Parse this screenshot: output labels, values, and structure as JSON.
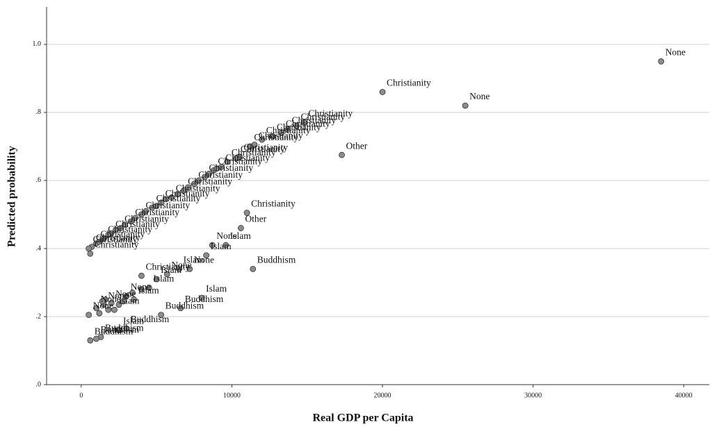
{
  "chart_data": {
    "type": "scatter",
    "x_label": "Real GDP per Capita",
    "y_label": "Predicted probability",
    "color": "#8c8c8c",
    "grid": true,
    "xlim": [
      -2300,
      41700
    ],
    "ylim": [
      0,
      1.11
    ],
    "xticks": [
      0,
      10000,
      20000,
      30000,
      40000
    ],
    "yticks": [
      {
        "value": 0,
        "label": ".0"
      },
      {
        "value": 0.2,
        "label": ".2"
      },
      {
        "value": 0.4,
        "label": ".4"
      },
      {
        "value": 0.6,
        "label": ".6"
      },
      {
        "value": 0.8,
        "label": ".8"
      },
      {
        "value": 1.0,
        "label": "1.0"
      }
    ],
    "x": [
      38500,
      20000,
      25500,
      17300,
      14800,
      14300,
      13700,
      13300,
      12700,
      12000,
      11500,
      11200,
      10500,
      10300,
      9700,
      9300,
      8800,
      8200,
      7500,
      6800,
      6000,
      5300,
      4700,
      4000,
      3300,
      2600,
      2000,
      1500,
      1000,
      700,
      500,
      600,
      11000,
      10600,
      11400,
      8700,
      9600,
      8300,
      7200,
      6500,
      5700,
      5000,
      4000,
      4500,
      8000,
      6600,
      5300,
      3500,
      3000,
      2000,
      1500,
      1000,
      500,
      3000,
      2500,
      1300,
      1000,
      600,
      2200,
      1200,
      1800,
      2300,
      2900,
      3600,
      4300,
      5000,
      5600,
      6400,
      7100,
      7800,
      8500,
      9000,
      1200,
      1800,
      2500,
      2800,
      1600,
      1400,
      3400,
      4000
    ],
    "values": [
      0.95,
      0.86,
      0.82,
      0.675,
      0.77,
      0.76,
      0.75,
      0.74,
      0.73,
      0.72,
      0.705,
      0.7,
      0.67,
      0.665,
      0.655,
      0.64,
      0.63,
      0.61,
      0.59,
      0.57,
      0.55,
      0.535,
      0.52,
      0.5,
      0.48,
      0.46,
      0.445,
      0.43,
      0.415,
      0.405,
      0.4,
      0.385,
      0.505,
      0.46,
      0.34,
      0.41,
      0.41,
      0.38,
      0.34,
      0.34,
      0.325,
      0.31,
      0.32,
      0.285,
      0.255,
      0.225,
      0.205,
      0.25,
      0.26,
      0.24,
      0.235,
      0.225,
      0.205,
      0.165,
      0.16,
      0.14,
      0.135,
      0.13,
      0.22,
      0.42,
      0.44,
      0.455,
      0.47,
      0.49,
      0.51,
      0.525,
      0.545,
      0.56,
      0.58,
      0.6,
      0.62,
      0.635,
      0.21,
      0.22,
      0.235,
      0.245,
      0.25,
      0.245,
      0.27,
      0.28
    ],
    "labels": [
      "None",
      "Christianity",
      "None",
      "Other",
      "Christianity",
      "Christianity",
      "Christianity",
      "Christianity",
      "Christianity",
      "Christianity",
      "Christianity",
      "Christianity",
      "Christianity",
      "Christianity",
      "Christianity",
      "Christianity",
      "Christianity",
      "Christianity",
      "Christianity",
      "Christianity",
      "Christianity",
      "Christianity",
      "Christianity",
      "Christianity",
      "Christianity",
      "Christianity",
      "Christianity",
      "Christianity",
      "Christianity",
      "Christianity",
      "Christianity",
      "Christianity",
      "Christianity",
      "Other",
      "Buddhism",
      "None",
      "Islam",
      "Islam",
      "None",
      "Islam",
      "None",
      "Islam",
      "Christianity",
      "Islam",
      "Islam",
      "Buddhism",
      "Buddhism",
      "Islam",
      "None",
      "None",
      "None",
      "None",
      "None",
      "Buddhism",
      "Islam",
      "Buddhism",
      "Buddhism",
      "Buddhism",
      "Islam",
      null,
      null,
      null,
      null,
      null,
      null,
      null,
      null,
      null,
      null,
      null,
      null,
      null,
      null,
      null,
      null,
      null,
      null,
      null,
      null,
      null
    ]
  }
}
